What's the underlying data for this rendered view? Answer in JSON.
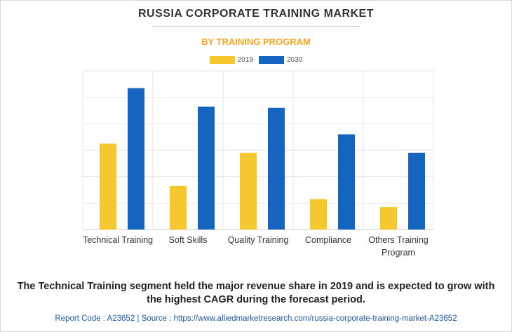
{
  "header": {
    "title": "RUSSIA CORPORATE TRAINING MARKET",
    "subtitle": "BY TRAINING PROGRAM",
    "subtitle_color": "#f5a623"
  },
  "footer": {
    "caption": "The Technical Training segment held the major revenue share in 2019 and is expected to grow with the highest CAGR during the forecast period.",
    "report_code_label": "Report Code : A23652",
    "separator": "|",
    "source_label": "Source : https://www.alliedmarketresearch.com/russia-corporate-training-market-A23652"
  },
  "chart_data": {
    "type": "bar",
    "categories": [
      "Technical Training",
      "Soft Skills",
      "Quality Training",
      "Compliance",
      "Others Training Program"
    ],
    "category_lines": [
      [
        "Technical Training"
      ],
      [
        "Soft Skills"
      ],
      [
        "Quality Training"
      ],
      [
        "Compliance"
      ],
      [
        "Others Training",
        "Program"
      ]
    ],
    "series": [
      {
        "name": "2019",
        "color": "#f5c830",
        "values": [
          32.5,
          16.5,
          29,
          11.5,
          8.5
        ]
      },
      {
        "name": "2030",
        "color": "#1565c0",
        "values": [
          53.5,
          46.5,
          46,
          36,
          29
        ]
      }
    ],
    "ylim": [
      0,
      60
    ],
    "y_ticks": [
      0,
      10,
      20,
      30,
      40,
      50,
      60
    ],
    "y_tick_labels_shown": false,
    "grid": true,
    "legend_position": "top-center",
    "xlabel": "",
    "ylabel": ""
  }
}
